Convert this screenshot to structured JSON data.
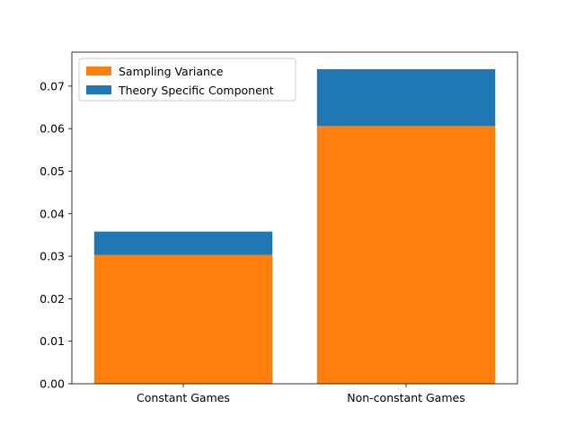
{
  "chart_data": {
    "type": "bar",
    "stacked": true,
    "categories": [
      "Constant Games",
      "Non-constant Games"
    ],
    "series": [
      {
        "name": "Sampling Variance",
        "color": "#ff7f0e",
        "values": [
          0.0303,
          0.0606
        ]
      },
      {
        "name": "Theory Specific Component",
        "color": "#1f77b4",
        "values": [
          0.0055,
          0.0134
        ]
      }
    ],
    "ylim": [
      0,
      0.078
    ],
    "yticks": [
      0.0,
      0.01,
      0.02,
      0.03,
      0.04,
      0.05,
      0.06,
      0.07
    ],
    "ytick_labels": [
      "0.00",
      "0.01",
      "0.02",
      "0.03",
      "0.04",
      "0.05",
      "0.06",
      "0.07"
    ],
    "grid": false,
    "legend_position": "top-left"
  }
}
